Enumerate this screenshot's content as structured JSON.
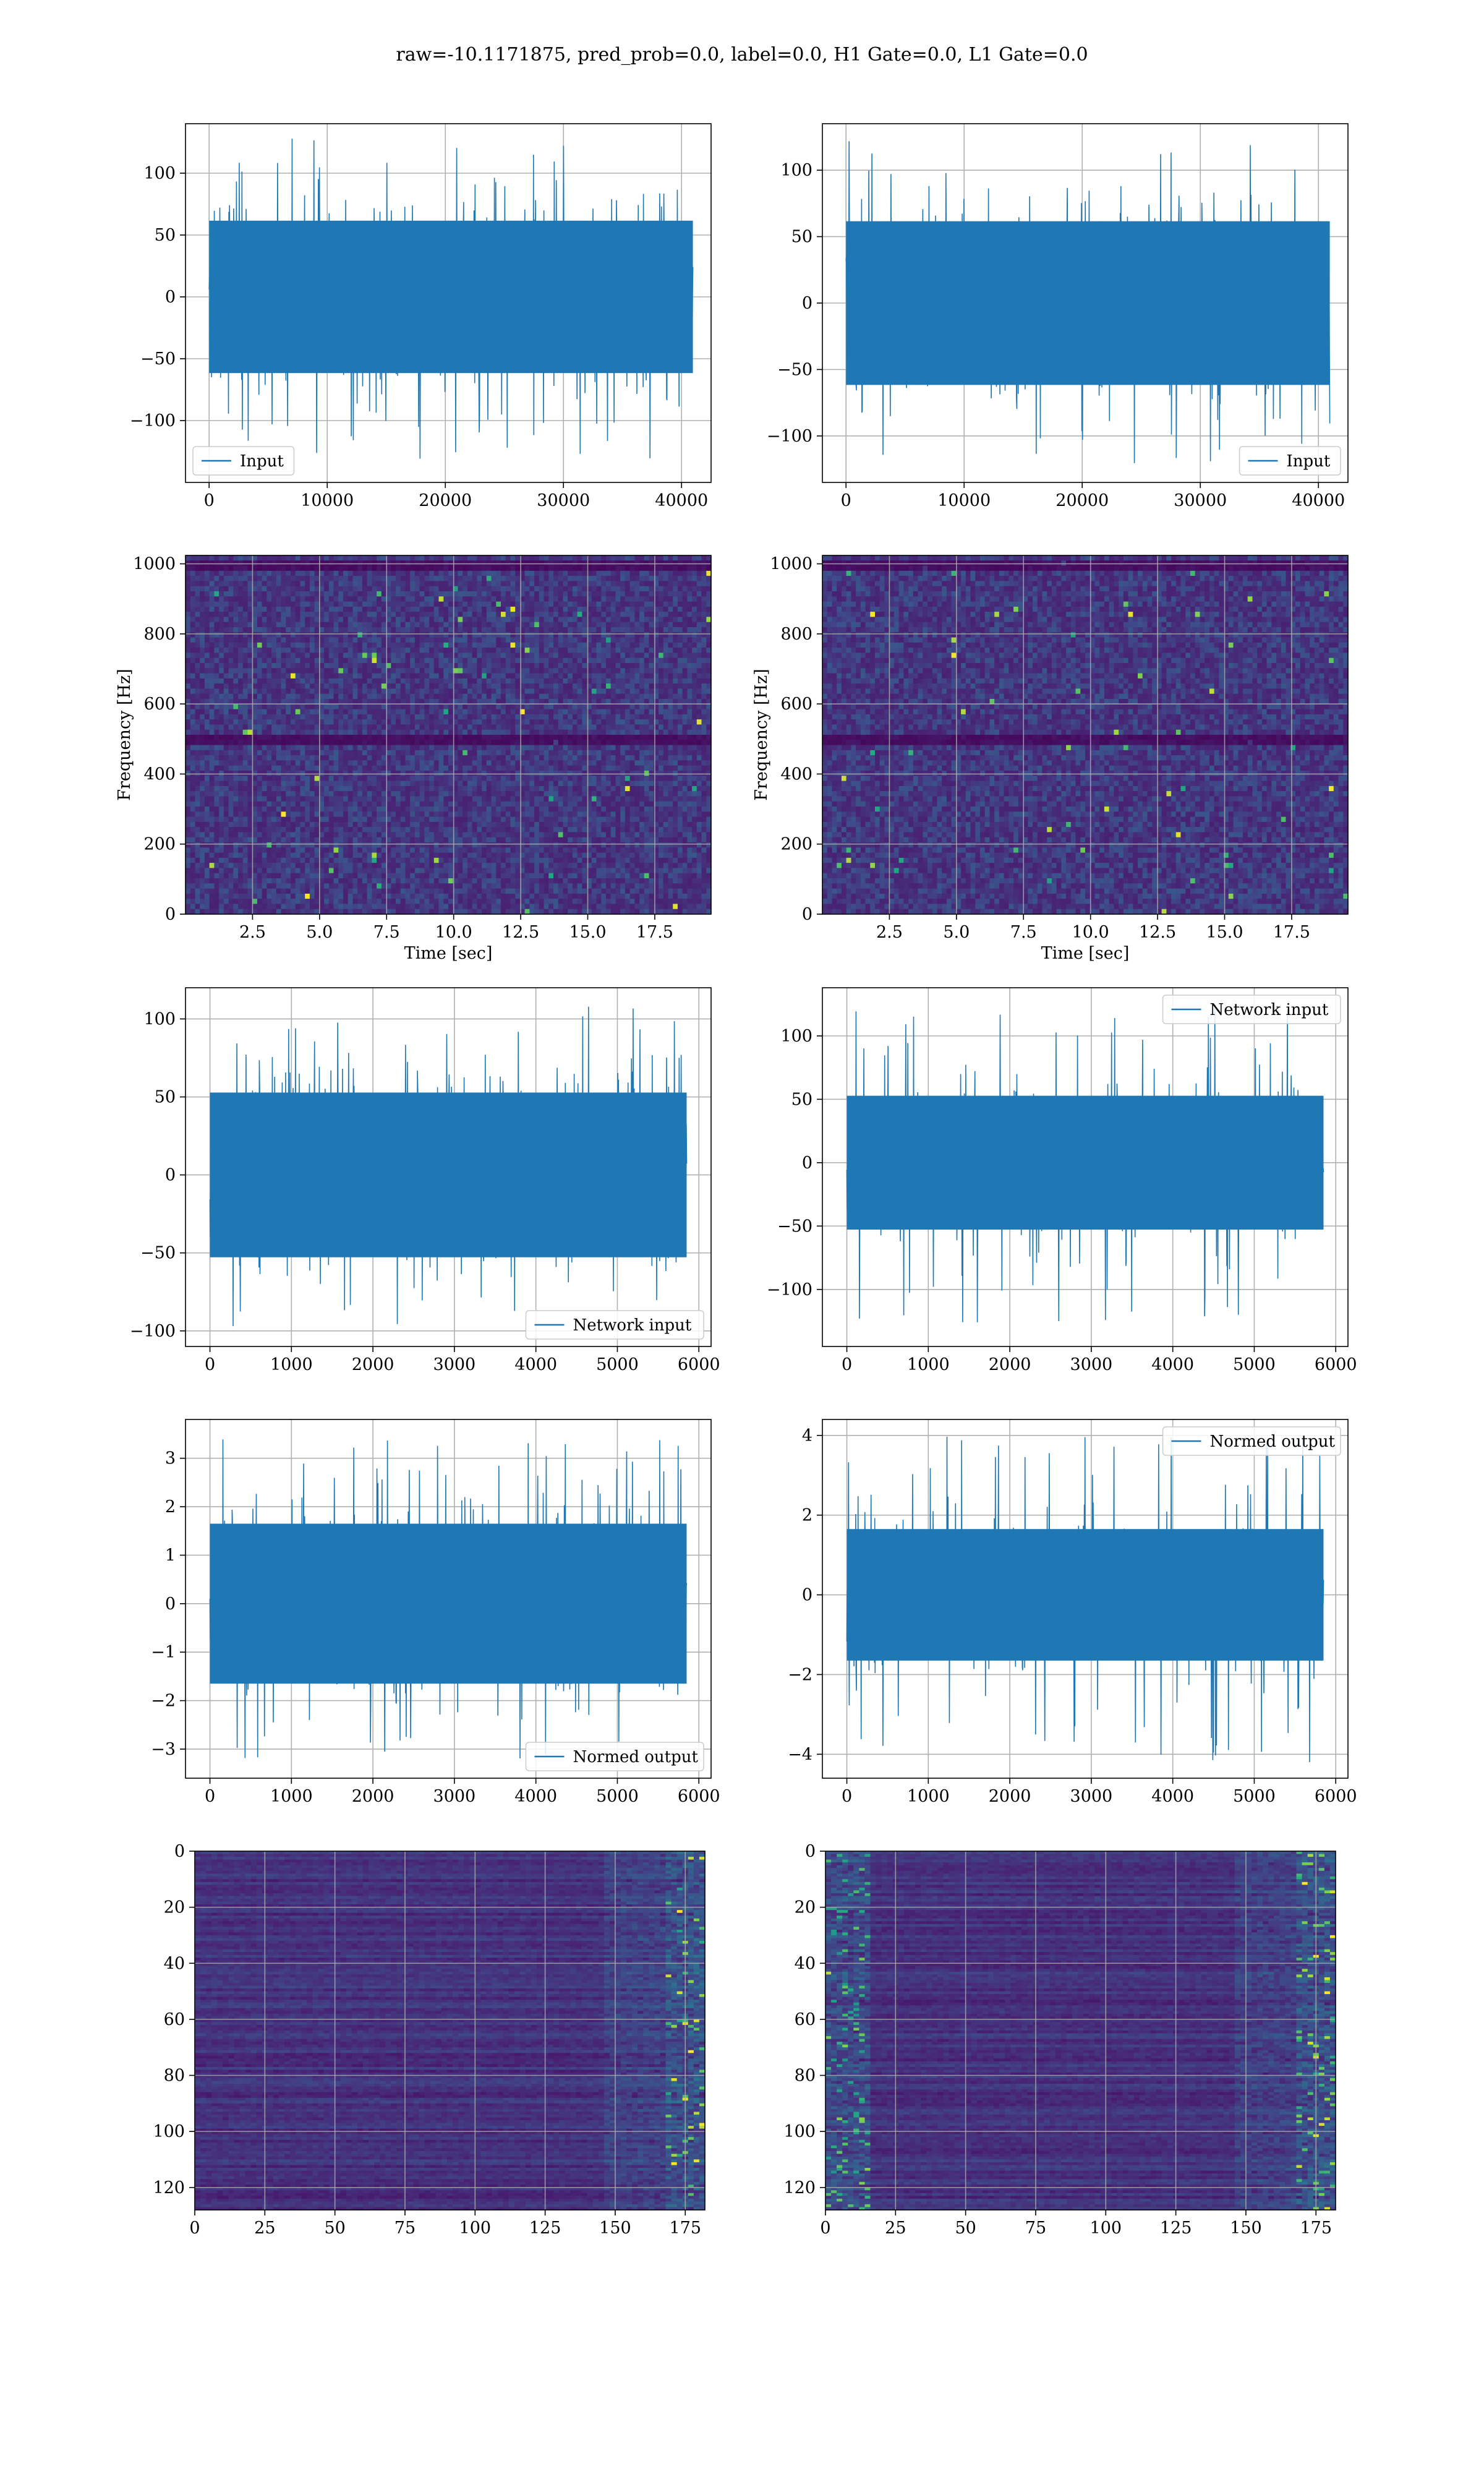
{
  "figure": {
    "suptitle": "raw=-10.1171875, pred_prob=0.0, label=0.0, H1 Gate=0.0, L1 Gate=0.0"
  },
  "colors": {
    "line": "#1f77b4",
    "grid": "#b0b0b0",
    "viridis_low": "#440154",
    "viridis_mid": "#21918c",
    "viridis_high": "#fde725"
  },
  "chart_data": [
    {
      "id": "input-left",
      "type": "line",
      "panel": "row1-left",
      "series": [
        {
          "name": "Input",
          "n_samples": 40960,
          "amplitude_range": [
            -135,
            128
          ],
          "core_std": 28
        }
      ],
      "xlim": [
        -2000,
        42500
      ],
      "ylim": [
        -150,
        140
      ],
      "xticks": [
        0,
        10000,
        20000,
        30000,
        40000
      ],
      "yticks": [
        -100,
        -50,
        0,
        50,
        100
      ],
      "xlabel": "",
      "ylabel": "",
      "legend": "lower-left",
      "grid": true
    },
    {
      "id": "input-right",
      "type": "line",
      "panel": "row1-right",
      "series": [
        {
          "name": "Input",
          "n_samples": 40960,
          "amplitude_range": [
            -122,
            122
          ],
          "core_std": 28
        }
      ],
      "xlim": [
        -2000,
        42500
      ],
      "ylim": [
        -135,
        135
      ],
      "xticks": [
        0,
        10000,
        20000,
        30000,
        40000
      ],
      "yticks": [
        -100,
        -50,
        0,
        50,
        100
      ],
      "xlabel": "",
      "ylabel": "",
      "legend": "lower-right",
      "grid": true
    },
    {
      "id": "spec-left",
      "type": "heatmap",
      "panel": "row2-left",
      "xlim": [
        0,
        19.6
      ],
      "ylim": [
        0,
        1024
      ],
      "xticks": [
        2.5,
        5.0,
        7.5,
        10.0,
        12.5,
        15.0,
        17.5
      ],
      "xtick_labels": [
        "2.5",
        "5.0",
        "7.5",
        "10.0",
        "12.5",
        "15.0",
        "17.5"
      ],
      "yticks": [
        0,
        200,
        400,
        600,
        800,
        1000
      ],
      "xlabel": "Time [sec]",
      "ylabel": "Frequency [Hz]",
      "colormap": "viridis",
      "grid": true,
      "dark_bands_hz": [
        500,
        1000
      ]
    },
    {
      "id": "spec-right",
      "type": "heatmap",
      "panel": "row2-right",
      "xlim": [
        0,
        19.6
      ],
      "ylim": [
        0,
        1024
      ],
      "xticks": [
        2.5,
        5.0,
        7.5,
        10.0,
        12.5,
        15.0,
        17.5
      ],
      "xtick_labels": [
        "2.5",
        "5.0",
        "7.5",
        "10.0",
        "12.5",
        "15.0",
        "17.5"
      ],
      "yticks": [
        0,
        200,
        400,
        600,
        800,
        1000
      ],
      "xlabel": "Time [sec]",
      "ylabel": "Frequency [Hz]",
      "colormap": "viridis",
      "grid": true,
      "dark_bands_hz": [
        500,
        1000
      ]
    },
    {
      "id": "network-left",
      "type": "line",
      "panel": "row3-left",
      "series": [
        {
          "name": "Network input",
          "n_samples": 5850,
          "amplitude_range": [
            -100,
            108
          ],
          "core_std": 24
        }
      ],
      "xlim": [
        -300,
        6150
      ],
      "ylim": [
        -110,
        120
      ],
      "xticks": [
        0,
        1000,
        2000,
        3000,
        4000,
        5000,
        6000
      ],
      "yticks": [
        -100,
        -50,
        0,
        50,
        100
      ],
      "xlabel": "",
      "ylabel": "",
      "legend": "lower-right",
      "grid": true
    },
    {
      "id": "network-right",
      "type": "line",
      "panel": "row3-right",
      "series": [
        {
          "name": "Network input",
          "n_samples": 5850,
          "amplitude_range": [
            -130,
            124
          ],
          "core_std": 24
        }
      ],
      "xlim": [
        -300,
        6150
      ],
      "ylim": [
        -145,
        138
      ],
      "xticks": [
        0,
        1000,
        2000,
        3000,
        4000,
        5000,
        6000
      ],
      "yticks": [
        -100,
        -50,
        0,
        50,
        100
      ],
      "xlabel": "",
      "ylabel": "",
      "legend": "upper-right",
      "grid": true
    },
    {
      "id": "normed-left",
      "type": "line",
      "panel": "row4-left",
      "series": [
        {
          "name": "Normed output",
          "n_samples": 5850,
          "amplitude_range": [
            -3.2,
            3.5
          ],
          "core_std": 0.75
        }
      ],
      "xlim": [
        -300,
        6150
      ],
      "ylim": [
        -3.6,
        3.8
      ],
      "xticks": [
        0,
        1000,
        2000,
        3000,
        4000,
        5000,
        6000
      ],
      "yticks": [
        -3,
        -2,
        -1,
        0,
        1,
        2,
        3
      ],
      "xlabel": "",
      "ylabel": "",
      "legend": "lower-right",
      "grid": true
    },
    {
      "id": "normed-right",
      "type": "line",
      "panel": "row4-right",
      "series": [
        {
          "name": "Normed output",
          "n_samples": 5850,
          "amplitude_range": [
            -4.3,
            4.0
          ],
          "core_std": 0.75
        }
      ],
      "xlim": [
        -300,
        6150
      ],
      "ylim": [
        -4.6,
        4.4
      ],
      "xticks": [
        0,
        1000,
        2000,
        3000,
        4000,
        5000,
        6000
      ],
      "yticks": [
        -4,
        -2,
        0,
        2,
        4
      ],
      "xlabel": "",
      "ylabel": "",
      "legend": "upper-right",
      "grid": true
    },
    {
      "id": "features-left",
      "type": "heatmap",
      "panel": "row5-left",
      "n_cols": 182,
      "n_rows": 128,
      "xlim": [
        0,
        182
      ],
      "ylim": [
        128,
        0
      ],
      "xticks": [
        0,
        25,
        50,
        75,
        100,
        125,
        150,
        175
      ],
      "yticks": [
        0,
        20,
        40,
        60,
        80,
        100,
        120
      ],
      "xlabel": "",
      "ylabel": "",
      "colormap": "viridis",
      "grid": true,
      "hot_region": "right edge"
    },
    {
      "id": "features-right",
      "type": "heatmap",
      "panel": "row5-right",
      "n_cols": 182,
      "n_rows": 128,
      "xlim": [
        0,
        182
      ],
      "ylim": [
        128,
        0
      ],
      "xticks": [
        0,
        25,
        50,
        75,
        100,
        125,
        150,
        175
      ],
      "yticks": [
        0,
        20,
        40,
        60,
        80,
        100,
        120
      ],
      "xlabel": "",
      "ylabel": "",
      "colormap": "viridis",
      "grid": true,
      "hot_region": "left and right edges"
    }
  ]
}
